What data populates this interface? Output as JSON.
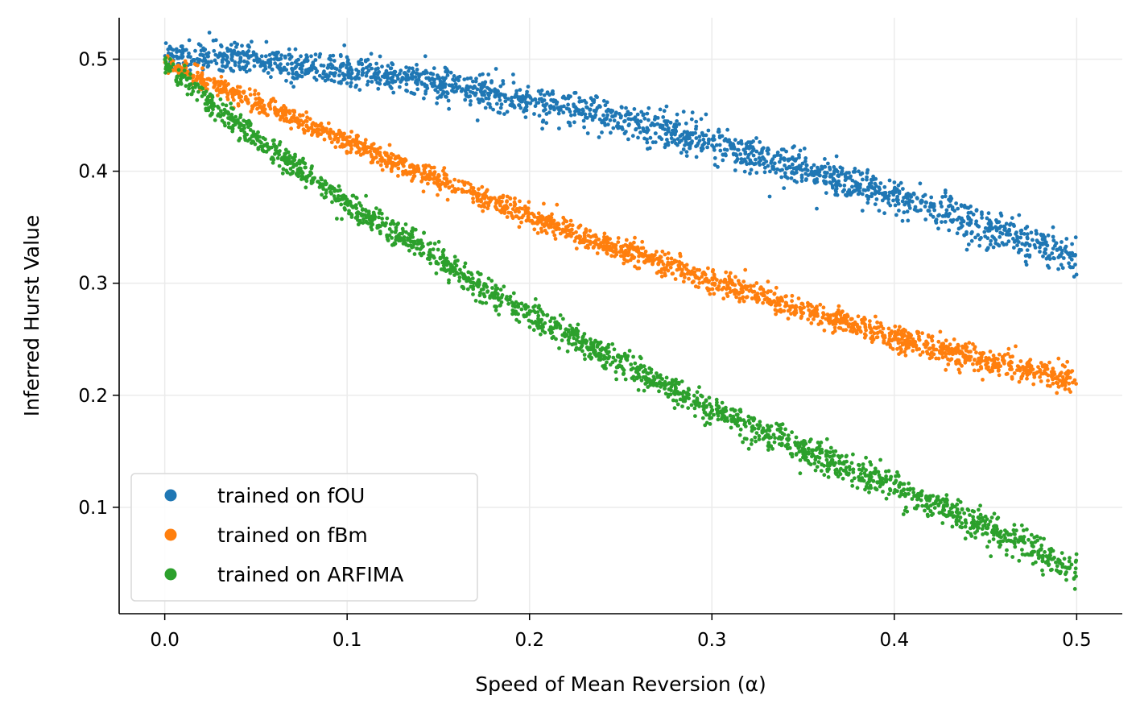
{
  "chart_data": {
    "type": "scatter",
    "xlabel": "Speed of Mean Reversion (α)",
    "ylabel": "Inferred Hurst Value",
    "xlim": [
      -0.025,
      0.525
    ],
    "ylim": [
      0.005,
      0.537
    ],
    "x_ticks": [
      0.0,
      0.1,
      0.2,
      0.3,
      0.4,
      0.5
    ],
    "x_tick_labels": [
      "0.0",
      "0.1",
      "0.2",
      "0.3",
      "0.4",
      "0.5"
    ],
    "y_ticks": [
      0.1,
      0.2,
      0.3,
      0.4,
      0.5
    ],
    "y_tick_labels": [
      "0.1",
      "0.2",
      "0.3",
      "0.4",
      "0.5"
    ],
    "grid": true,
    "legend_position": "lower-left",
    "series": [
      {
        "name": "trained on fOU",
        "color": "#1f77b4",
        "x": [
          0.0,
          0.025,
          0.05,
          0.075,
          0.1,
          0.125,
          0.15,
          0.175,
          0.2,
          0.225,
          0.25,
          0.275,
          0.3,
          0.325,
          0.35,
          0.375,
          0.4,
          0.425,
          0.45,
          0.475,
          0.5
        ],
        "y": [
          0.503,
          0.501,
          0.499,
          0.495,
          0.49,
          0.485,
          0.479,
          0.472,
          0.463,
          0.455,
          0.446,
          0.436,
          0.425,
          0.413,
          0.402,
          0.39,
          0.377,
          0.364,
          0.351,
          0.337,
          0.323
        ]
      },
      {
        "name": "trained on fBm",
        "color": "#ff7f0e",
        "x": [
          0.0,
          0.025,
          0.05,
          0.075,
          0.1,
          0.125,
          0.15,
          0.175,
          0.2,
          0.225,
          0.25,
          0.275,
          0.3,
          0.325,
          0.35,
          0.375,
          0.4,
          0.425,
          0.45,
          0.475,
          0.5
        ],
        "y": [
          0.496,
          0.479,
          0.461,
          0.443,
          0.426,
          0.409,
          0.392,
          0.376,
          0.36,
          0.345,
          0.33,
          0.316,
          0.302,
          0.289,
          0.276,
          0.264,
          0.252,
          0.241,
          0.231,
          0.222,
          0.213
        ]
      },
      {
        "name": "trained on ARFIMA",
        "color": "#2ca02c",
        "x": [
          0.0,
          0.025,
          0.05,
          0.075,
          0.1,
          0.125,
          0.15,
          0.175,
          0.2,
          0.225,
          0.25,
          0.275,
          0.3,
          0.325,
          0.35,
          0.375,
          0.4,
          0.425,
          0.45,
          0.475,
          0.5
        ],
        "y": [
          0.497,
          0.459,
          0.43,
          0.4,
          0.371,
          0.346,
          0.321,
          0.295,
          0.272,
          0.25,
          0.229,
          0.209,
          0.188,
          0.169,
          0.151,
          0.134,
          0.117,
          0.099,
          0.081,
          0.063,
          0.042
        ]
      }
    ]
  }
}
